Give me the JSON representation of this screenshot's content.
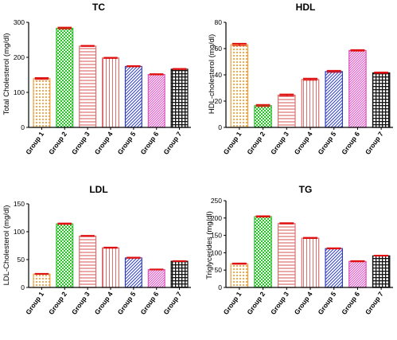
{
  "chart_data": [
    {
      "type": "bar",
      "title": "TC",
      "ylabel": "Total Cholesterol (mg/dl)",
      "categories": [
        "Group 1",
        "Group 2",
        "Group 3",
        "Group 4",
        "Group 5",
        "Group 6",
        "Group 7"
      ],
      "values": [
        139,
        283,
        232,
        198,
        174,
        151,
        166
      ],
      "errors": [
        2,
        2,
        1,
        1,
        1,
        1,
        1
      ],
      "ylim": [
        0,
        300
      ],
      "yticks": [
        "0",
        "100",
        "200",
        "300"
      ],
      "grid": false
    },
    {
      "type": "bar",
      "title": "HDL",
      "ylabel": "HDL-cholesterol (mg/dl)",
      "categories": [
        "Group 1",
        "Group 2",
        "Group 3",
        "Group 4",
        "Group 5",
        "Group 6",
        "Group 7"
      ],
      "values": [
        63,
        16.5,
        24.5,
        36.5,
        42.5,
        58.5,
        41.5
      ],
      "errors": [
        0.7,
        0.6,
        0.6,
        0.6,
        0.6,
        0.4,
        0.3
      ],
      "ylim": [
        0,
        80
      ],
      "yticks": [
        "0",
        "20",
        "40",
        "60",
        "80"
      ],
      "grid": false
    },
    {
      "type": "bar",
      "title": "LDL",
      "ylabel": "LDL-Cholesterol (mg/dl)",
      "categories": [
        "Group 1",
        "Group 2",
        "Group 3",
        "Group 4",
        "Group 5",
        "Group 6",
        "Group 7"
      ],
      "values": [
        24,
        114,
        92,
        71,
        53,
        32,
        47
      ],
      "errors": [
        0.4,
        0.8,
        0.6,
        0.6,
        0.6,
        0.4,
        0.3
      ],
      "ylim": [
        0,
        150
      ],
      "yticks": [
        "0",
        "50",
        "100",
        "150"
      ],
      "grid": false
    },
    {
      "type": "bar",
      "title": "TG",
      "ylabel": "Triglycerides (mg/dl)",
      "categories": [
        "Group 1",
        "Group 2",
        "Group 3",
        "Group 4",
        "Group 5",
        "Group 6",
        "Group 7"
      ],
      "values": [
        68,
        204,
        184,
        142,
        112,
        75,
        91
      ],
      "errors": [
        1.2,
        1.2,
        1.2,
        1.0,
        1.0,
        1.0,
        0.6
      ],
      "ylim": [
        0,
        250
      ],
      "yticks": [
        "0",
        "50",
        "100",
        "150",
        "200",
        "250"
      ],
      "grid": false
    }
  ],
  "style": {
    "group_colors": [
      "#f0a040",
      "#30c030",
      "#e07070",
      "#e07070",
      "#3040c0",
      "#e050c0",
      "#111111"
    ],
    "group_patterns": [
      "dots",
      "checker",
      "hlines",
      "vlines",
      "diagonal",
      "diagonal-dense",
      "grid"
    ],
    "error_color": "#e01010",
    "axis_color": "#000000"
  }
}
